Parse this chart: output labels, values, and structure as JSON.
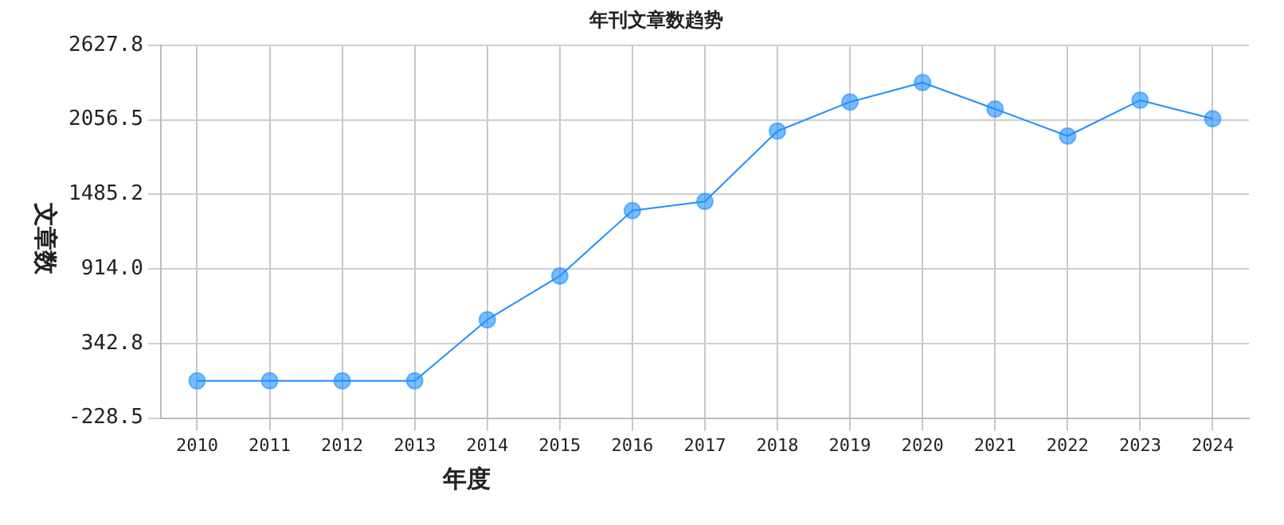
{
  "chart_data": {
    "type": "line",
    "title": "年刊文章数趋势",
    "xlabel": "年度",
    "ylabel": "文章数",
    "categories": [
      "2010",
      "2011",
      "2012",
      "2013",
      "2014",
      "2015",
      "2016",
      "2017",
      "2018",
      "2019",
      "2020",
      "2021",
      "2022",
      "2023",
      "2024"
    ],
    "series": [
      {
        "color": "#1e90ff",
        "values": [
          57,
          57,
          57,
          57,
          525,
          860,
          1361,
          1431,
          1970,
          2193,
          2342,
          2139,
          1932,
          2206,
          2065
        ]
      }
    ],
    "ylim": [
      -228.5,
      2627.8
    ],
    "yticks": [
      {
        "value": -228.5,
        "label": "-228.5"
      },
      {
        "value": 342.8,
        "label": "342.8"
      },
      {
        "value": 914,
        "label": "914.0"
      },
      {
        "value": 1485.2,
        "label": "1485.2"
      },
      {
        "value": 2056.5,
        "label": "2056.5"
      },
      {
        "value": 2627.8,
        "label": "2627.8"
      }
    ],
    "grid": true,
    "legend": false,
    "marker": "circle",
    "line_style": "solid"
  }
}
